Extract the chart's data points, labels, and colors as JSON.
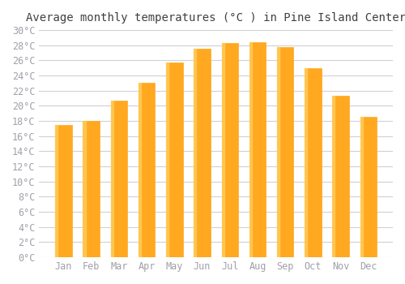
{
  "title": "Average monthly temperatures (°C ) in Pine Island Center",
  "months": [
    "Jan",
    "Feb",
    "Mar",
    "Apr",
    "May",
    "Jun",
    "Jul",
    "Aug",
    "Sep",
    "Oct",
    "Nov",
    "Dec"
  ],
  "values": [
    17.5,
    18.0,
    20.7,
    23.0,
    25.7,
    27.5,
    28.3,
    28.4,
    27.8,
    25.0,
    21.3,
    18.5
  ],
  "bar_color": "#FFA820",
  "bar_edge_color": "#FFB830",
  "background_color": "#FFFFFF",
  "grid_color": "#D0D0D8",
  "tick_label_color": "#A0A0A8",
  "title_color": "#404040",
  "ylim": [
    0,
    30
  ],
  "ytick_step": 2,
  "title_fontsize": 10,
  "tick_fontsize": 8.5
}
